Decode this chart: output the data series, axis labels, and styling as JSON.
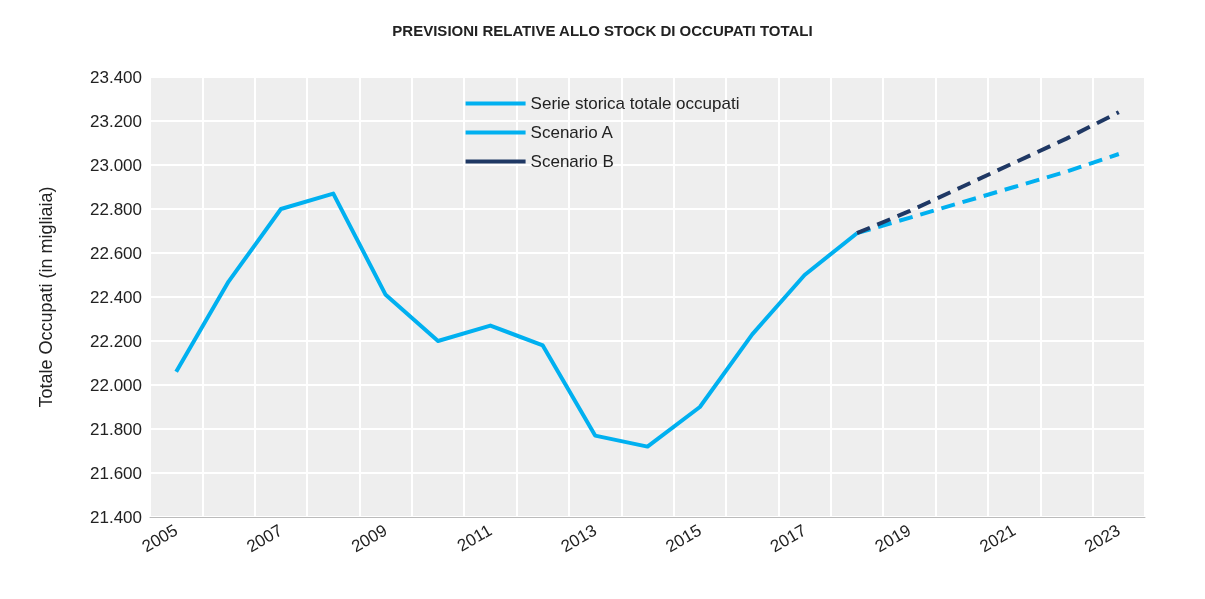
{
  "chart_data": {
    "type": "line",
    "title": "PREVISIONI RELATIVE ALLO STOCK DI OCCUPATI TOTALI",
    "ylabel": "Totale Occupati (in migliaia)",
    "categories": [
      "2005",
      null,
      "2007",
      null,
      "2009",
      null,
      "2011",
      null,
      "2013",
      null,
      "2015",
      null,
      "2017",
      null,
      "2019",
      null,
      "2021",
      null,
      "2023"
    ],
    "series": [
      {
        "name": "Serie storica totale occupati",
        "color": "#00b0f0",
        "line_style": "solid",
        "values": [
          22060,
          22470,
          22800,
          22870,
          22410,
          22200,
          22270,
          22180,
          21770,
          21720,
          21900,
          22230,
          22500,
          22690,
          null,
          null,
          null,
          null,
          null
        ]
      },
      {
        "name": "Scenario A",
        "color": "#00b0f0",
        "line_style": "dashed",
        "values": [
          null,
          null,
          null,
          null,
          null,
          null,
          null,
          null,
          null,
          null,
          null,
          null,
          null,
          22690,
          22760,
          22830,
          22900,
          22970,
          23050
        ]
      },
      {
        "name": "Scenario B",
        "color": "#1f3864",
        "line_style": "dashed",
        "values": [
          null,
          null,
          null,
          null,
          null,
          null,
          null,
          null,
          null,
          null,
          null,
          null,
          null,
          22690,
          22790,
          22900,
          23010,
          23120,
          23240
        ]
      }
    ],
    "ylim": [
      21400,
      23400
    ],
    "yticks": [
      {
        "value": 21400,
        "label": "21.400"
      },
      {
        "value": 21600,
        "label": "21.600"
      },
      {
        "value": 21800,
        "label": "21.800"
      },
      {
        "value": 22000,
        "label": "22.000"
      },
      {
        "value": 22200,
        "label": "22.200"
      },
      {
        "value": 22400,
        "label": "22.400"
      },
      {
        "value": 22600,
        "label": "22.600"
      },
      {
        "value": 22800,
        "label": "22.800"
      },
      {
        "value": 23000,
        "label": "23.000"
      },
      {
        "value": 23200,
        "label": "23.200"
      },
      {
        "value": 23400,
        "label": "23.400"
      }
    ],
    "grid": true,
    "legend": "top",
    "marker": "none"
  }
}
